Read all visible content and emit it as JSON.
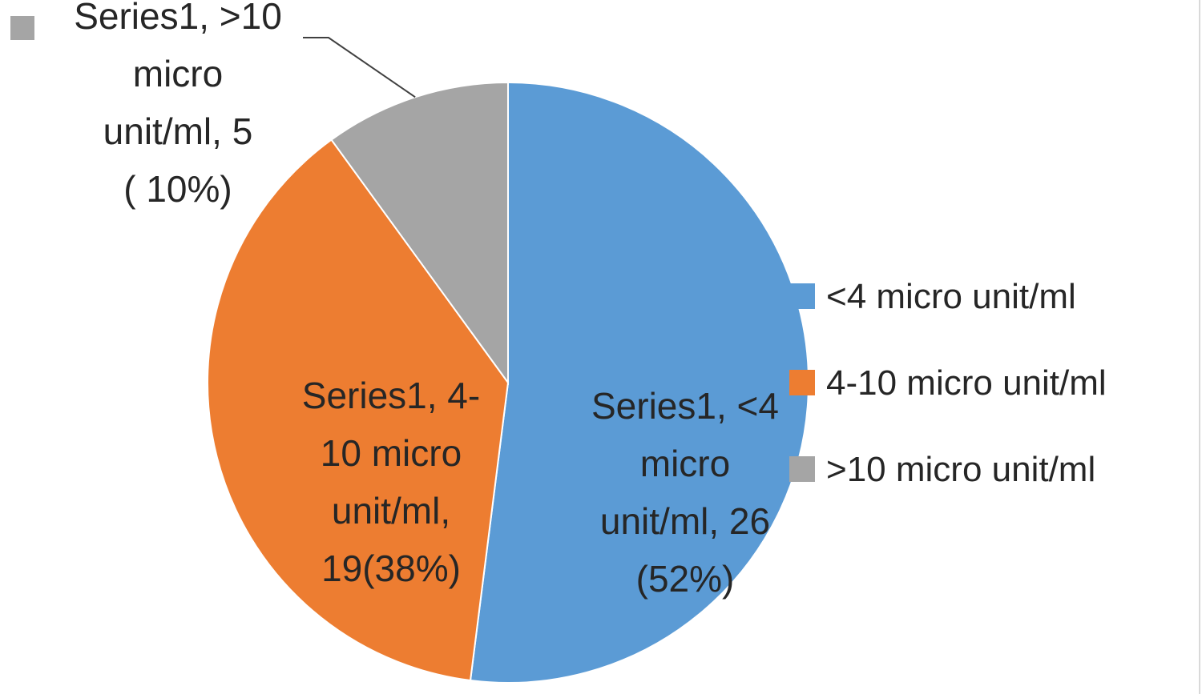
{
  "chart_data": {
    "type": "pie",
    "series_name": "Series1",
    "slices": [
      {
        "category": "<4 micro unit/ml",
        "value": 26,
        "percent": 52,
        "color": "#5b9bd5",
        "label_lines": [
          "Series1, <4",
          "micro",
          "unit/ml, 26",
          "(52%)"
        ]
      },
      {
        "category": "4-10 micro unit/ml",
        "value": 19,
        "percent": 38,
        "color": "#ed7d31",
        "label_lines": [
          "Series1, 4-",
          "10 micro",
          "unit/ml,",
          "19(38%)"
        ]
      },
      {
        "category": ">10 micro unit/ml",
        "value": 5,
        "percent": 10,
        "color": "#a5a5a5",
        "label_lines": [
          "Series1, >10",
          "micro",
          "unit/ml, 5",
          "( 10%)"
        ]
      }
    ],
    "legend": {
      "placement": "right",
      "entries": [
        "<4 micro unit/ml",
        "4-10 micro unit/ml",
        ">10 micro unit/ml"
      ]
    },
    "start_angle": "12 o'clock, clockwise"
  }
}
